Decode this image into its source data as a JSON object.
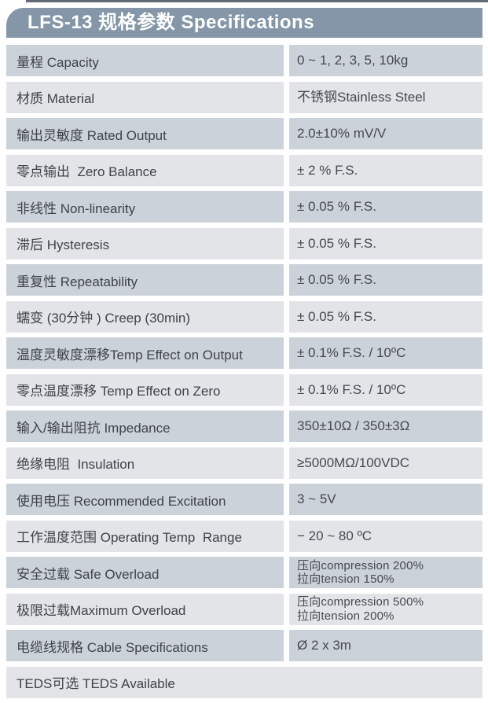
{
  "header": {
    "title": "LFS-13 规格参数 Specifications"
  },
  "table": {
    "rows": [
      {
        "label": "量程 Capacity",
        "value": [
          "0 ~ 1, 2, 3, 5, 10kg"
        ]
      },
      {
        "label": "材质 Material",
        "value": [
          "不锈钢Stainless Steel"
        ]
      },
      {
        "label": "输出灵敏度 Rated Output",
        "value": [
          "2.0±10% mV/V"
        ]
      },
      {
        "label": "零点输出  Zero Balance",
        "value": [
          "± 2 % F.S."
        ]
      },
      {
        "label": "非线性 Non-linearity",
        "value": [
          "± 0.05 % F.S."
        ]
      },
      {
        "label": "滞后 Hysteresis",
        "value": [
          "± 0.05 % F.S."
        ]
      },
      {
        "label": "重复性 Repeatability",
        "value": [
          "± 0.05 % F.S."
        ]
      },
      {
        "label": "蠕变 (30分钟 ) Creep (30min)",
        "value": [
          "± 0.05 % F.S."
        ]
      },
      {
        "label": "温度灵敏度漂移Temp Effect on Output",
        "value": [
          "± 0.1% F.S. / 10ºC"
        ]
      },
      {
        "label": "零点温度漂移 Temp Effect on Zero",
        "value": [
          "± 0.1% F.S. / 10ºC"
        ]
      },
      {
        "label": "输入/输出阻抗 Impedance",
        "value": [
          "350±10Ω / 350±3Ω"
        ]
      },
      {
        "label": "绝缘电阻  Insulation",
        "value": [
          "≥5000MΩ/100VDC"
        ]
      },
      {
        "label": "使用电压 Recommended Excitation",
        "value": [
          "3 ~ 5V"
        ]
      },
      {
        "label": "工作温度范围 Operating Temp  Range",
        "value": [
          "− 20 ~ 80 ºC"
        ]
      },
      {
        "label": "安全过载 Safe Overload",
        "value": [
          "压向compression 200%",
          "拉向tension 150%"
        ]
      },
      {
        "label": "极限过载Maximum Overload",
        "value": [
          "压向compression 500%",
          "拉向tension 200%"
        ]
      },
      {
        "label": "电缆线规格 Cable Specifications",
        "value": [
          "Ø 2 x 3m"
        ]
      },
      {
        "label": "TEDS可选 TEDS Available",
        "value": [],
        "full_width": true
      }
    ]
  },
  "colors": {
    "header_bg": "#8496a7",
    "header_text": "#ffffff",
    "row_dark": "#ccd2d9",
    "row_light": "#e2e4e8",
    "label_text": "#3d4349",
    "value_text": "#44494f",
    "top_edge": "#606b75"
  }
}
